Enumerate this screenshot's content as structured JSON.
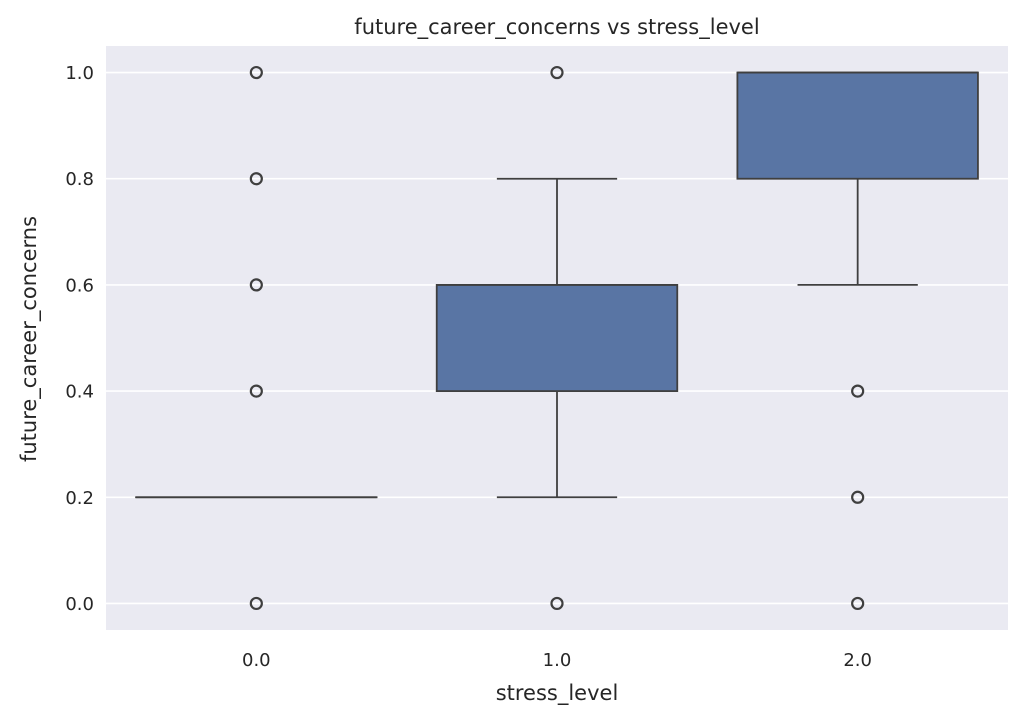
{
  "chart_data": {
    "type": "box",
    "title": "future_career_concerns vs stress_level",
    "xlabel": "stress_level",
    "ylabel": "future_career_concerns",
    "categories": [
      "0.0",
      "1.0",
      "2.0"
    ],
    "ylim": [
      -0.05,
      1.05
    ],
    "yticks": [
      "0.0",
      "0.2",
      "0.4",
      "0.6",
      "0.8",
      "1.0"
    ],
    "grid": true,
    "colors": {
      "background": "#eaeaf2",
      "box": "#5975a4",
      "edge": "#3f3f3f",
      "grid": "#ffffff"
    },
    "boxes": [
      {
        "category": "0.0",
        "q1": 0.2,
        "median": 0.2,
        "q3": 0.2,
        "whisker_low": 0.2,
        "whisker_high": 0.2,
        "outliers": [
          0.0,
          0.4,
          0.6,
          0.8,
          1.0
        ]
      },
      {
        "category": "1.0",
        "q1": 0.4,
        "median": 0.6,
        "q3": 0.6,
        "whisker_low": 0.2,
        "whisker_high": 0.8,
        "outliers": [
          0.0,
          1.0
        ]
      },
      {
        "category": "2.0",
        "q1": 0.8,
        "median": 1.0,
        "q3": 1.0,
        "whisker_low": 0.6,
        "whisker_high": 1.0,
        "outliers": [
          0.0,
          0.2,
          0.4
        ]
      }
    ]
  }
}
